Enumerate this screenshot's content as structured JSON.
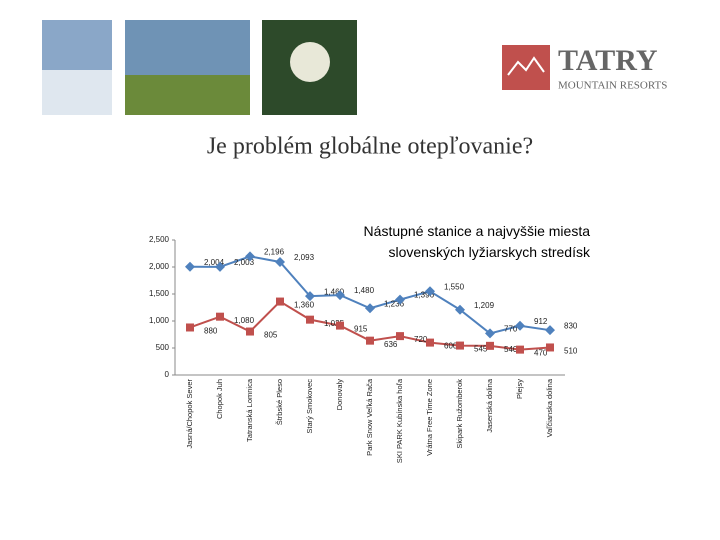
{
  "header": {
    "logo_name": "TATRY",
    "logo_sub": "MOUNTAIN RESORTS",
    "title": "Je problém globálne otepľovanie?"
  },
  "chart_data": {
    "type": "line",
    "title": "Nástupné stanice a najvyššie miesta slovenských lyžiarskych stredísk",
    "categories": [
      "Jasná/Chopok Sever",
      "Chopok Juh",
      "Tatranská Lomnica",
      "Štrbské Pleso",
      "Starý Smokovec",
      "Donovaly",
      "Park Snow Veľká Rača",
      "SKI PARK Kubínska hoľa",
      "Vrátna Free Time Zone",
      "Skipark Ružomberok",
      "Jasenská dolina",
      "Plejsy",
      "Vaľčianska dolina"
    ],
    "series": [
      {
        "color": "#4f81bd",
        "marker": "diamond",
        "values": [
          2004,
          2003,
          2196,
          2093,
          1460,
          1480,
          1236,
          1396,
          1550,
          1209,
          770,
          912,
          830
        ],
        "value_labels": [
          "2,004",
          "2,003",
          "2,196",
          "2,093",
          "1,460",
          "1,480",
          "1,236",
          "1,396",
          "1,550",
          "1,209",
          "770",
          "912",
          "830"
        ]
      },
      {
        "color": "#c0504d",
        "marker": "square",
        "values": [
          880,
          1080,
          805,
          1360,
          1025,
          915,
          636,
          720,
          600,
          545,
          540,
          470,
          510
        ],
        "value_labels": [
          "880",
          "1,080",
          "805",
          "1,360",
          "1,025",
          "915",
          "636",
          "720",
          "600",
          "545",
          "540",
          "470",
          "510"
        ]
      }
    ],
    "ylim": [
      0,
      2500
    ],
    "yticks": [
      0,
      500,
      {
        "value": 1000,
        "label": "1,000"
      },
      {
        "value": 1500,
        "label": "1,500"
      },
      {
        "value": 2000,
        "label": "2,000"
      },
      {
        "value": 2500,
        "label": "2,500"
      }
    ]
  }
}
